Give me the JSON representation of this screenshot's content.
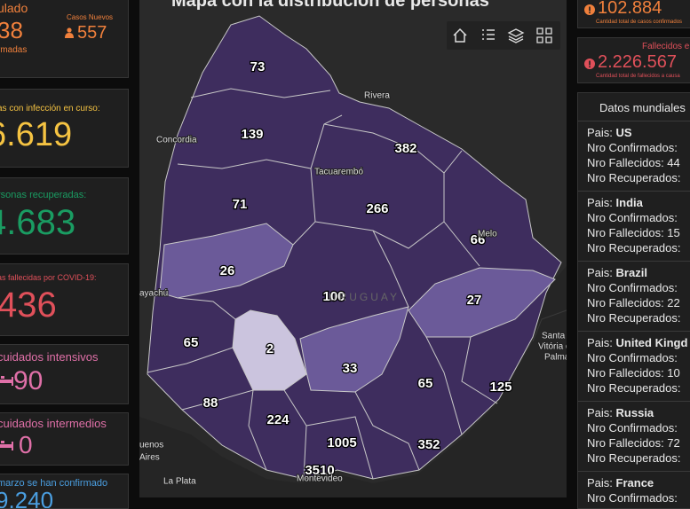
{
  "left": {
    "summary": {
      "label": "ulado",
      "value": "38",
      "sub": "rmadas",
      "new_label": "Casos Nuevos",
      "new_value": "557"
    },
    "cards": [
      {
        "label": "as con infección en curso:",
        "value": "6.619"
      },
      {
        "label": "rsonas recuperadas:",
        "value": "4.683"
      },
      {
        "label": "as fallecidas por COVID-19:",
        "value": "436"
      },
      {
        "label": "cuidados intensivos",
        "value": "90"
      },
      {
        "label": "cuidados intermedios",
        "value": "0"
      },
      {
        "label": "marzo se han confirmado",
        "value": "9.240"
      }
    ]
  },
  "map": {
    "title": "Mapa con la distribución de personas",
    "departments": [
      73,
      139,
      382,
      71,
      266,
      66,
      26,
      100,
      27,
      65,
      2,
      33,
      65,
      125,
      88,
      224,
      1005,
      352,
      3510
    ],
    "places": [
      "Rivera",
      "Concordia",
      "Tacuarembó",
      "Melo",
      "URUGUAY",
      "ayachú",
      "Santa",
      "Vitória do",
      "Palma",
      "uenos",
      "Aires",
      "La Plata",
      "Montevideo"
    ]
  },
  "right": {
    "confirmed": {
      "value": "102.884",
      "caption": "Cantidad total de casos confirmados"
    },
    "deaths": {
      "label": "Fallecidos e",
      "value": "2.226.567",
      "caption": "Cantidad total de fallecidos a causa"
    },
    "world": {
      "title": "Datos mundiales",
      "countries": [
        {
          "prefix": "Pais:",
          "name": "US",
          "confirmed": "Nro Confirmados:",
          "deaths": "Nro Fallecidos: 44",
          "recovered": "Nro Recuperados:"
        },
        {
          "prefix": "Pais:",
          "name": "India",
          "confirmed": "Nro Confirmados:",
          "deaths": "Nro Fallecidos: 15",
          "recovered": "Nro Recuperados:"
        },
        {
          "prefix": "Pais:",
          "name": "Brazil",
          "confirmed": "Nro Confirmados:",
          "deaths": "Nro Fallecidos: 22",
          "recovered": "Nro Recuperados:"
        },
        {
          "prefix": "Pais:",
          "name": "United Kingd",
          "confirmed": "Nro Confirmados:",
          "deaths": "Nro Fallecidos: 10",
          "recovered": "Nro Recuperados:"
        },
        {
          "prefix": "Pais:",
          "name": "Russia",
          "confirmed": "Nro Confirmados:",
          "deaths": "Nro Fallecidos: 72",
          "recovered": "Nro Recuperados:"
        },
        {
          "prefix": "Pais:",
          "name": "France",
          "confirmed": "Nro Confirmados:"
        }
      ]
    }
  }
}
